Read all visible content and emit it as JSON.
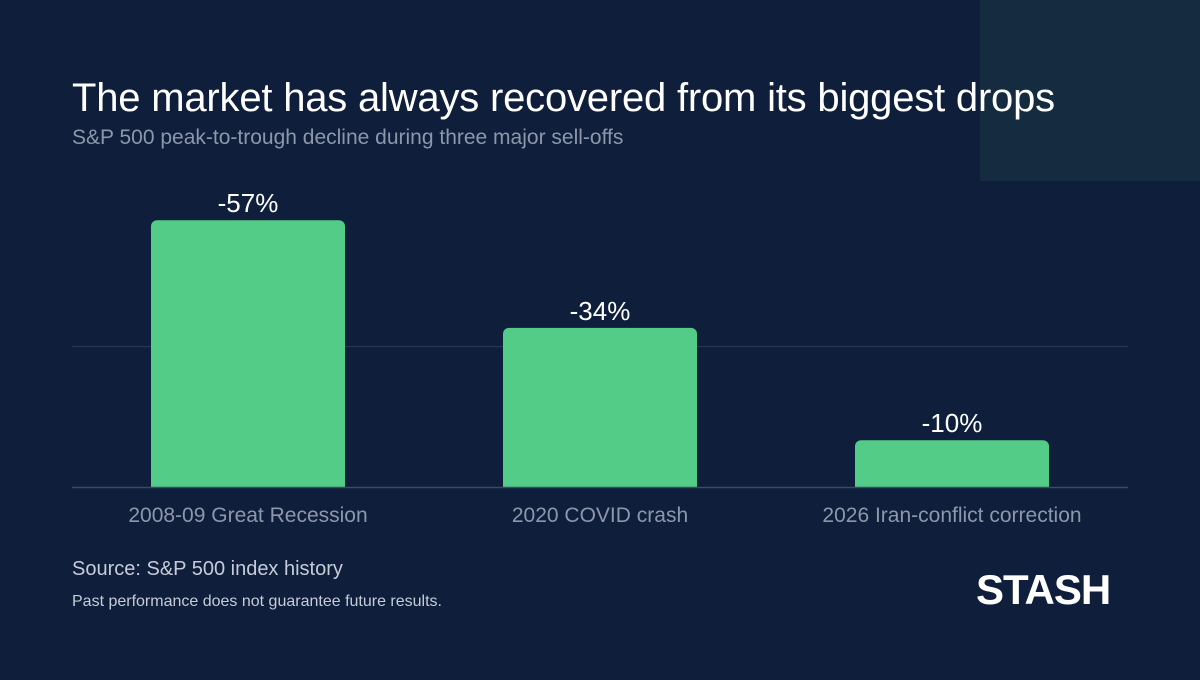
{
  "header": {
    "title": "The market has always recovered from its biggest drops",
    "subtitle": "S&P 500 peak-to-trough decline during three major sell-offs"
  },
  "chart_data": {
    "type": "bar",
    "categories": [
      "2008-09 Great Recession",
      "2020 COVID crash",
      "2026 Iran-conflict correction"
    ],
    "values": [
      -57,
      -34,
      -10
    ],
    "data_labels": [
      "-57%",
      "-34%",
      "-10%"
    ],
    "title": "The market has always recovered from its biggest drops",
    "subtitle": "S&P 500 peak-to-trough decline during three major sell-offs",
    "xlabel": "",
    "ylabel": "",
    "ylim": [
      0,
      60
    ],
    "grid": true,
    "legend": "none",
    "bar_color": "#52cc87"
  },
  "footer": {
    "source": "Source: S&P 500 index history",
    "disclaimer": "Past performance does not guarantee future results.",
    "logo_text": "STASH"
  },
  "colors": {
    "background": "#0f1e3a",
    "accent_panel": "#152b40",
    "bar": "#52cc87",
    "title": "#ffffff",
    "subtitle": "#8c97aa"
  }
}
